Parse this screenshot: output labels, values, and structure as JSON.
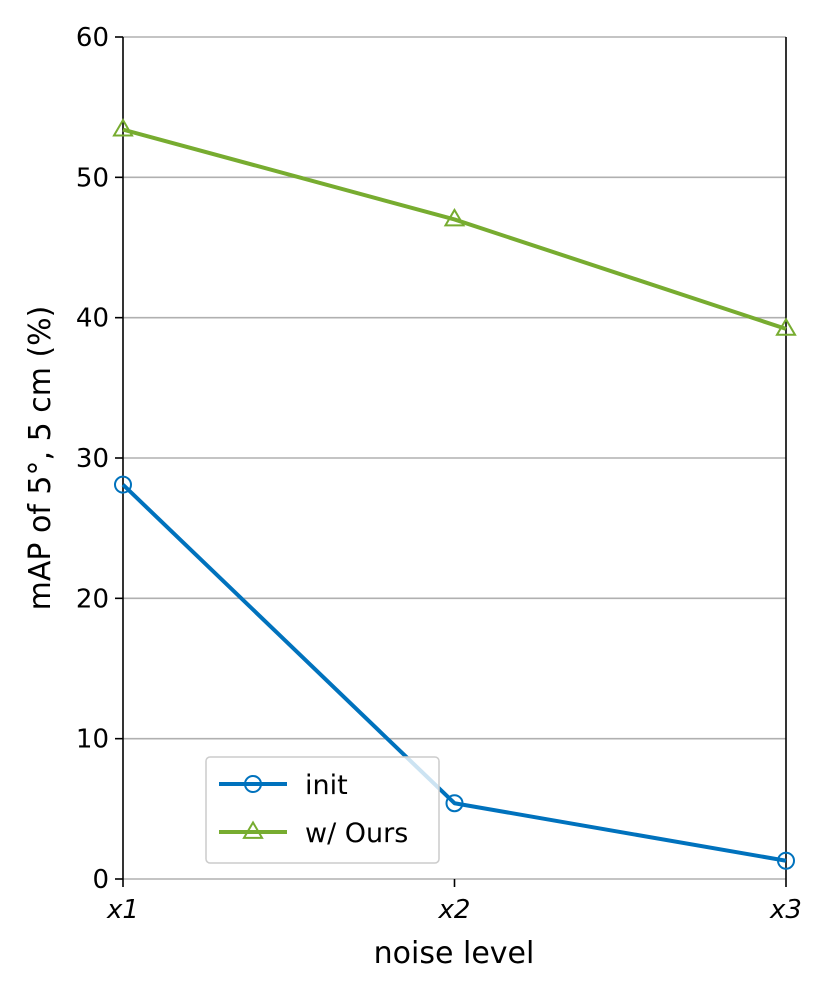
{
  "chart_data": {
    "type": "line",
    "title": "",
    "xlabel": "noise level",
    "ylabel": "mAP of 5°, 5 cm (%)",
    "categories": [
      "x1",
      "x2",
      "x3"
    ],
    "ylim": [
      0,
      60
    ],
    "yticks": [
      0,
      10,
      20,
      30,
      40,
      50,
      60
    ],
    "grid": "horizontal",
    "legend_position": "lower-left",
    "series": [
      {
        "name": "init",
        "marker": "circle",
        "color": "#0072BD",
        "values": [
          28.1,
          5.4,
          1.3
        ]
      },
      {
        "name": "w/ Ours",
        "marker": "triangle",
        "color": "#77AC30",
        "values": [
          53.4,
          47.0,
          39.2
        ]
      }
    ]
  }
}
